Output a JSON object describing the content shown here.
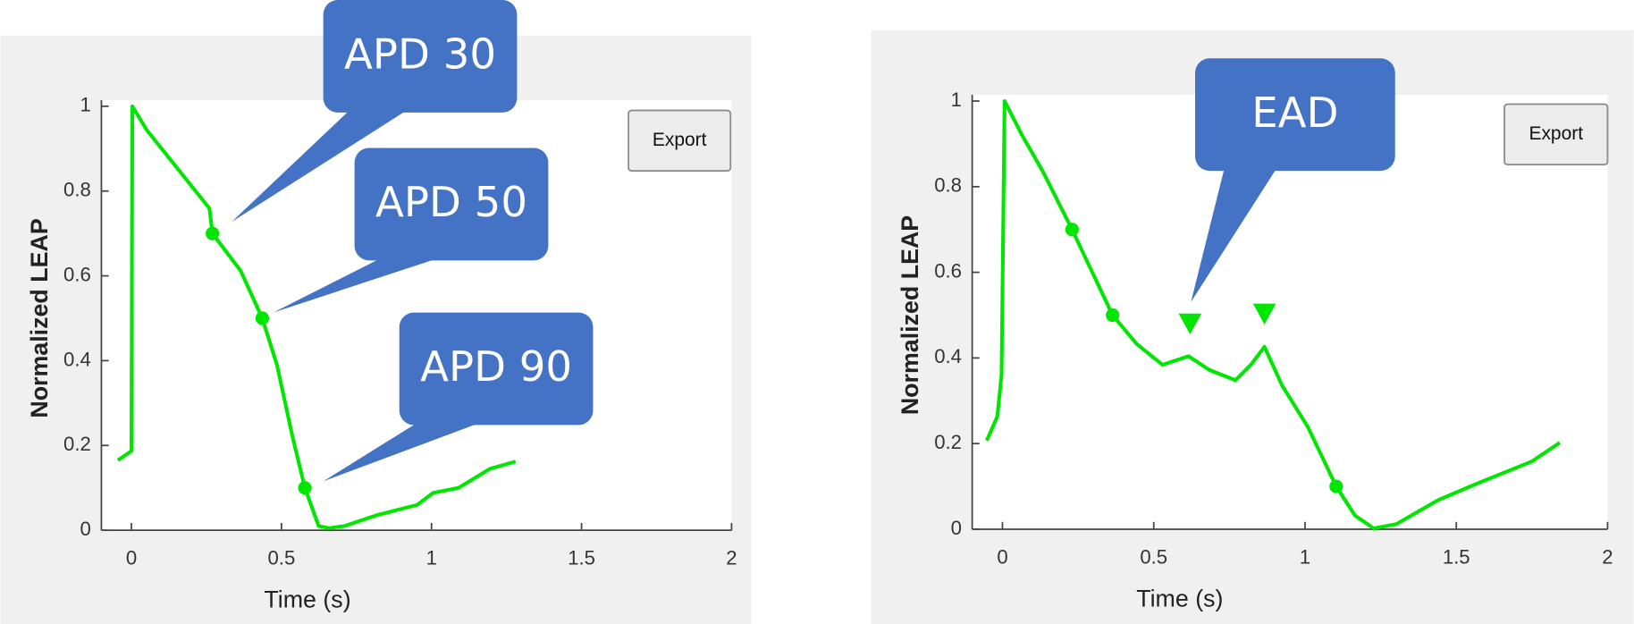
{
  "chart_data": [
    {
      "type": "line",
      "color": "#00e600",
      "button": "Export",
      "xlabel": "Time (s)",
      "ylabel": "Normalized LEAP",
      "xlim": [
        -0.1,
        2
      ],
      "ylim": [
        0,
        1
      ],
      "xticks": [
        0,
        0.5,
        1,
        1.5,
        2
      ],
      "yticks": [
        0,
        0.2,
        0.4,
        0.6,
        0.8,
        1
      ],
      "x": [
        -0.045,
        0,
        0.003,
        0.052,
        0.121,
        0.26,
        0.27,
        0.364,
        0.436,
        0.485,
        0.537,
        0.578,
        0.624,
        0.658,
        0.71,
        0.815,
        0.953,
        1.005,
        1.09,
        1.195,
        1.28
      ],
      "values": [
        0.165,
        0.187,
        1.0,
        0.943,
        0.882,
        0.759,
        0.7,
        0.612,
        0.5,
        0.39,
        0.22,
        0.1,
        0.01,
        0.005,
        0.01,
        0.035,
        0.06,
        0.088,
        0.1,
        0.145,
        0.162
      ],
      "markers": {
        "x": [
          0.27,
          0.436,
          0.578
        ],
        "values": [
          0.7,
          0.5,
          0.1
        ]
      },
      "annotations": [
        "APD 30",
        "APD 50",
        "APD 90"
      ]
    },
    {
      "type": "line",
      "color": "#00e600",
      "button": "Export",
      "xlabel": "Time (s)",
      "ylabel": "Normalized LEAP",
      "xlim": [
        -0.1,
        2
      ],
      "ylim": [
        0,
        1
      ],
      "xticks": [
        0,
        0.5,
        1,
        1.5,
        2
      ],
      "yticks": [
        0,
        0.2,
        0.4,
        0.6,
        0.8,
        1
      ],
      "x": [
        -0.052,
        -0.017,
        -0.003,
        0.007,
        0.065,
        0.134,
        0.23,
        0.364,
        0.443,
        0.529,
        0.615,
        0.684,
        0.77,
        0.821,
        0.866,
        0.924,
        1.01,
        1.103,
        1.165,
        1.227,
        1.302,
        1.44,
        1.577,
        1.749,
        1.842
      ],
      "values": [
        0.207,
        0.263,
        0.36,
        1.0,
        0.92,
        0.835,
        0.7,
        0.5,
        0.433,
        0.384,
        0.404,
        0.372,
        0.348,
        0.384,
        0.426,
        0.336,
        0.238,
        0.1,
        0.032,
        0.002,
        0.012,
        0.068,
        0.109,
        0.158,
        0.202
      ],
      "markers": {
        "x": [
          0.23,
          0.364,
          1.103
        ],
        "values": [
          0.7,
          0.5,
          0.1
        ]
      },
      "triangles": {
        "x": [
          0.62,
          0.866
        ],
        "values": [
          0.477,
          0.5
        ]
      },
      "annotations": [
        "EAD"
      ]
    }
  ]
}
